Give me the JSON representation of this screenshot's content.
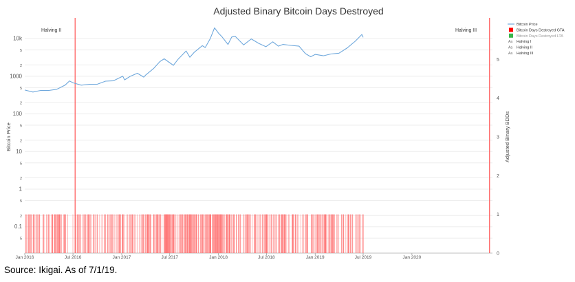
{
  "chart_data": {
    "type": "line",
    "title": "Adjusted Binary Bitcoin Days Destroyed",
    "ylabel_left": "Bitcoin Price",
    "ylabel_right": "Adjusted Binary BDDs",
    "y_left_scale": "log",
    "y_left_range": [
      0.02,
      30000
    ],
    "y_left_ticks": [
      "10k",
      "5",
      "2",
      "1000",
      "5",
      "2",
      "100",
      "5",
      "2",
      "10",
      "5",
      "2",
      "1",
      "5",
      "2",
      "0.1",
      "5"
    ],
    "y_right_range": [
      0,
      6
    ],
    "y_right_ticks": [
      "0",
      "1",
      "2",
      "3",
      "4",
      "5"
    ],
    "x_range": [
      "2016-01-01",
      "2020-10-31"
    ],
    "x_ticks": [
      "Jan 2016",
      "Jul 2016",
      "Jan 2017",
      "Jul 2017",
      "Jan 2018",
      "Jul 2018",
      "Jan 2019",
      "Jul 2019",
      "Jan 2020"
    ],
    "grid": true,
    "legend_position": "top-right",
    "legend": [
      "Bitcoin Price",
      "Bitcoin Days Destroyed GTA",
      "Bitcoin Days Destroyed LTA",
      "Halving I",
      "Halving II",
      "Halving III"
    ],
    "annotations": [
      "Halving II",
      "Halving III"
    ],
    "halvings": [
      {
        "name": "Halving II",
        "date": "2016-07-09"
      },
      {
        "name": "Halving III",
        "date": "2020-10-20"
      }
    ],
    "series": [
      {
        "name": "Bitcoin Price",
        "color": "#6fa8dc",
        "x": [
          "2016-01-01",
          "2016-02-01",
          "2016-03-01",
          "2016-04-01",
          "2016-05-01",
          "2016-06-01",
          "2016-06-18",
          "2016-07-01",
          "2016-08-01",
          "2016-09-01",
          "2016-10-01",
          "2016-11-01",
          "2016-12-01",
          "2017-01-05",
          "2017-01-12",
          "2017-02-01",
          "2017-03-01",
          "2017-03-25",
          "2017-04-01",
          "2017-05-01",
          "2017-05-25",
          "2017-06-10",
          "2017-07-15",
          "2017-08-01",
          "2017-09-01",
          "2017-09-15",
          "2017-10-01",
          "2017-11-01",
          "2017-11-12",
          "2017-12-01",
          "2017-12-17",
          "2018-01-01",
          "2018-01-15",
          "2018-02-06",
          "2018-02-20",
          "2018-03-05",
          "2018-04-06",
          "2018-05-05",
          "2018-06-01",
          "2018-06-29",
          "2018-07-25",
          "2018-08-15",
          "2018-09-01",
          "2018-10-01",
          "2018-11-01",
          "2018-11-25",
          "2018-12-15",
          "2019-01-01",
          "2019-02-01",
          "2019-03-01",
          "2019-04-01",
          "2019-05-01",
          "2019-06-01",
          "2019-06-26",
          "2019-07-01"
        ],
        "y": [
          430,
          380,
          420,
          420,
          450,
          580,
          750,
          670,
          580,
          610,
          615,
          740,
          760,
          1000,
          800,
          990,
          1200,
          950,
          1070,
          1600,
          2450,
          2900,
          1950,
          2800,
          4700,
          3200,
          4300,
          6500,
          5800,
          10000,
          19300,
          14000,
          11000,
          7000,
          11000,
          11500,
          6800,
          9800,
          7500,
          6100,
          8200,
          6300,
          7000,
          6600,
          6300,
          4000,
          3300,
          3800,
          3500,
          3900,
          4100,
          5600,
          8500,
          12900,
          10800
        ]
      },
      {
        "name": "Bitcoin Days Destroyed GTA",
        "color": "#ff6666",
        "type": "binary-bar",
        "value": 1,
        "x_range": [
          "2016-01-01",
          "2019-07-01"
        ]
      }
    ]
  },
  "source_text": "Source: Ikigai. As of 7/1/19."
}
